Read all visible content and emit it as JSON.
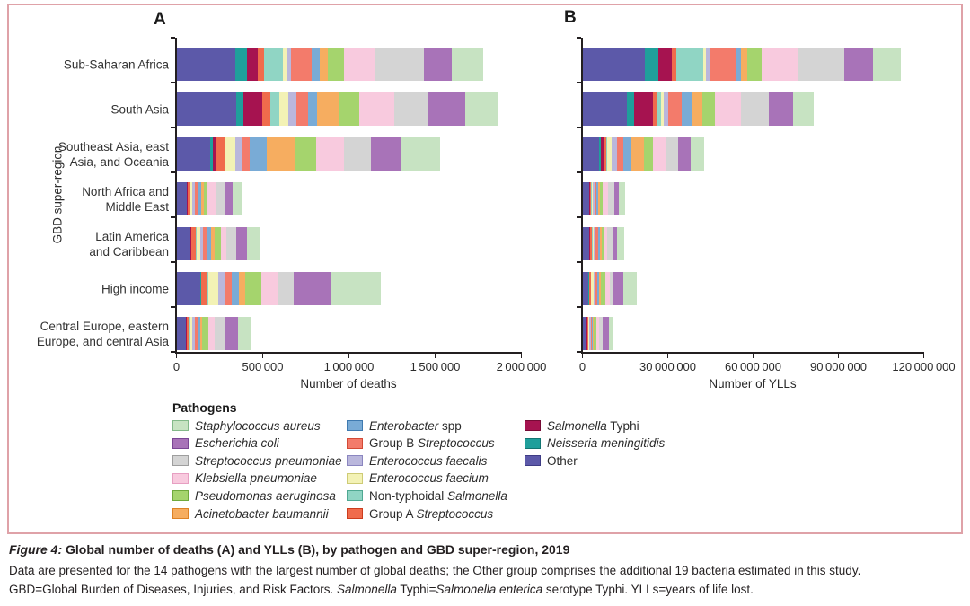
{
  "frame_color": "#dfa2a8",
  "axis_color": "#231f20",
  "legend": {
    "title": "Pathogens",
    "columns": [
      [
        {
          "parts": [
            {
              "text": "Staphylococcus aureus",
              "italic": true
            }
          ],
          "color": "#c7e3c2",
          "border": "#83b989"
        },
        {
          "parts": [
            {
              "text": "Escherichia coli",
              "italic": true
            }
          ],
          "color": "#a873b8",
          "border": "#7a4694"
        },
        {
          "parts": [
            {
              "text": "Streptococcus pneumoniae",
              "italic": true
            }
          ],
          "color": "#d4d4d4",
          "border": "#9e9e9e"
        },
        {
          "parts": [
            {
              "text": "Klebsiella pneumoniae",
              "italic": true
            }
          ],
          "color": "#f8cade",
          "border": "#e79fc2"
        },
        {
          "parts": [
            {
              "text": "Pseudomonas aeruginosa",
              "italic": true
            }
          ],
          "color": "#a5d46d",
          "border": "#6fa93c"
        },
        {
          "parts": [
            {
              "text": "Acinetobacter baumannii",
              "italic": true
            }
          ],
          "color": "#f6ad60",
          "border": "#dd8226"
        }
      ],
      [
        {
          "parts": [
            {
              "text": "Enterobacter",
              "italic": true
            },
            {
              "text": " spp",
              "italic": false
            }
          ],
          "color": "#79abd6",
          "border": "#3f7ab0"
        },
        {
          "parts": [
            {
              "text": "Group B ",
              "italic": false
            },
            {
              "text": "Streptococcus",
              "italic": true
            }
          ],
          "color": "#f37b6b",
          "border": "#d34a36"
        },
        {
          "parts": [
            {
              "text": "Enterococcus faecalis",
              "italic": true
            }
          ],
          "color": "#bab7dc",
          "border": "#8b86c0"
        },
        {
          "parts": [
            {
              "text": "Enterococcus faecium",
              "italic": true
            }
          ],
          "color": "#f3f2b5",
          "border": "#cecb76"
        },
        {
          "parts": [
            {
              "text": "Non-typhoidal ",
              "italic": false
            },
            {
              "text": "Salmonella",
              "italic": true
            }
          ],
          "color": "#90d5c4",
          "border": "#4fa892"
        },
        {
          "parts": [
            {
              "text": "Group A ",
              "italic": false
            },
            {
              "text": "Streptococcus",
              "italic": true
            }
          ],
          "color": "#f06b4c",
          "border": "#cc3d1e"
        }
      ],
      [
        {
          "parts": [
            {
              "text": "Salmonella",
              "italic": true
            },
            {
              "text": " Typhi",
              "italic": false
            }
          ],
          "color": "#a61350",
          "border": "#760b36"
        },
        {
          "parts": [
            {
              "text": "Neisseria meningitidis",
              "italic": true
            }
          ],
          "color": "#1f9f9b",
          "border": "#127571"
        },
        {
          "parts": [
            {
              "text": "Other",
              "italic": false
            }
          ],
          "color": "#5c59a9",
          "border": "#3f3c85"
        }
      ]
    ]
  },
  "chart_data": [
    {
      "type": "bar",
      "subtype": "horizontal-stacked",
      "panel": "A",
      "xlabel": "Number of deaths",
      "ylabel": "GBD super-region",
      "xlim": [
        0,
        2000000
      ],
      "grid": false,
      "xticks": [
        {
          "v": 0,
          "label": "0"
        },
        {
          "v": 500000,
          "label": "500 000"
        },
        {
          "v": 1000000,
          "label": "1 000 000"
        },
        {
          "v": 1500000,
          "label": "1 500 000"
        },
        {
          "v": 2000000,
          "label": "2 000 000"
        }
      ],
      "categories": [
        "Sub-Saharan Africa",
        "South Asia",
        "Southeast Asia, east\nAsia, and Oceania",
        "North Africa and\nMiddle East",
        "Latin America\nand Caribbean",
        "High income",
        "Central Europe, eastern\nEurope, and central Asia"
      ],
      "series": [
        {
          "name": "Other",
          "color": "#5c59a9",
          "values": [
            342000,
            347000,
            195000,
            58000,
            79000,
            140000,
            53000
          ]
        },
        {
          "name": "Neisseria meningitidis",
          "color": "#1f9f9b",
          "values": [
            65000,
            39000,
            16000,
            4000,
            4000,
            2000,
            3000
          ]
        },
        {
          "name": "Salmonella Typhi",
          "color": "#a61350",
          "values": [
            67000,
            110000,
            21000,
            5000,
            4000,
            1000,
            2000
          ]
        },
        {
          "name": "Group A Streptococcus",
          "color": "#f06b4c",
          "values": [
            35000,
            47000,
            47000,
            8000,
            23000,
            38000,
            14000
          ]
        },
        {
          "name": "Non-typhoidal Salmonella",
          "color": "#90d5c4",
          "values": [
            110000,
            53000,
            5000,
            5000,
            5000,
            5000,
            4000
          ]
        },
        {
          "name": "Enterococcus faecium",
          "color": "#f3f2b5",
          "values": [
            21000,
            53000,
            58000,
            12000,
            21000,
            58000,
            16000
          ]
        },
        {
          "name": "Enterococcus faecalis",
          "color": "#bab7dc",
          "values": [
            26000,
            44000,
            42000,
            14000,
            18000,
            38000,
            17000
          ]
        },
        {
          "name": "Group B Streptococcus",
          "color": "#f37b6b",
          "values": [
            119000,
            70000,
            42000,
            21000,
            26000,
            37000,
            14000
          ]
        },
        {
          "name": "Enterobacter spp",
          "color": "#79abd6",
          "values": [
            47000,
            53000,
            96000,
            14000,
            23000,
            42000,
            14000
          ]
        },
        {
          "name": "Acinetobacter baumannii",
          "color": "#f6ad60",
          "values": [
            44000,
            132000,
            167000,
            17000,
            21000,
            38000,
            12000
          ]
        },
        {
          "name": "Pseudomonas aeruginosa",
          "color": "#a5d46d",
          "values": [
            96000,
            114000,
            123000,
            23000,
            32000,
            95000,
            35000
          ]
        },
        {
          "name": "Klebsiella pneumoniae",
          "color": "#f8cade",
          "values": [
            184000,
            202000,
            158000,
            44000,
            35000,
            92000,
            40000
          ]
        },
        {
          "name": "Streptococcus pneumoniae",
          "color": "#d4d4d4",
          "values": [
            277000,
            193000,
            158000,
            56000,
            58000,
            92000,
            56000
          ]
        },
        {
          "name": "Escherichia coli",
          "color": "#a873b8",
          "values": [
            165000,
            219000,
            175000,
            44000,
            58000,
            220000,
            79000
          ]
        },
        {
          "name": "Staphylococcus aureus",
          "color": "#c7e3c2",
          "values": [
            181000,
            184000,
            228000,
            58000,
            79000,
            290000,
            70000
          ]
        }
      ]
    },
    {
      "type": "bar",
      "subtype": "horizontal-stacked",
      "panel": "B",
      "xlabel": "Number of YLLs",
      "xlim": [
        0,
        120000000
      ],
      "grid": false,
      "xticks": [
        {
          "v": 0,
          "label": "0"
        },
        {
          "v": 30000000,
          "label": "30 000 000"
        },
        {
          "v": 60000000,
          "label": "60 000 000"
        },
        {
          "v": 90000000,
          "label": "90 000 000"
        },
        {
          "v": 120000000,
          "label": "120 000 000"
        }
      ],
      "categories": [
        "Sub-Saharan Africa",
        "South Asia",
        "Southeast Asia, east\nAsia, and Oceania",
        "North Africa and\nMiddle East",
        "Latin America\nand Caribbean",
        "High income",
        "Central Europe, eastern\nEurope, and central Asia"
      ],
      "series": [
        {
          "name": "Other",
          "color": "#5c59a9",
          "values": [
            21900000,
            15700000,
            5900000,
            2300000,
            2400000,
            2200000,
            1400000
          ]
        },
        {
          "name": "Neisseria meningitidis",
          "color": "#1f9f9b",
          "values": [
            4800000,
            2400000,
            700000,
            200000,
            100000,
            100000,
            100000
          ]
        },
        {
          "name": "Salmonella Typhi",
          "color": "#a61350",
          "values": [
            4600000,
            6600000,
            1000000,
            200000,
            100000,
            100000,
            100000
          ]
        },
        {
          "name": "Group A Streptococcus",
          "color": "#f06b4c",
          "values": [
            1600000,
            1800000,
            800000,
            300000,
            700000,
            600000,
            350000
          ]
        },
        {
          "name": "Non-typhoidal Salmonella",
          "color": "#90d5c4",
          "values": [
            9700000,
            1300000,
            300000,
            200000,
            200000,
            100000,
            100000
          ]
        },
        {
          "name": "Enterococcus faecium",
          "color": "#f3f2b5",
          "values": [
            700000,
            800000,
            1600000,
            500000,
            600000,
            900000,
            400000
          ]
        },
        {
          "name": "Enterococcus faecalis",
          "color": "#bab7dc",
          "values": [
            1300000,
            1500000,
            1800000,
            500000,
            500000,
            600000,
            450000
          ]
        },
        {
          "name": "Group B Streptococcus",
          "color": "#f37b6b",
          "values": [
            9400000,
            4700000,
            2400000,
            800000,
            800000,
            600000,
            350000
          ]
        },
        {
          "name": "Enterobacter spp",
          "color": "#79abd6",
          "values": [
            1600000,
            3700000,
            2600000,
            600000,
            700000,
            700000,
            350000
          ]
        },
        {
          "name": "Acinetobacter baumannii",
          "color": "#f6ad60",
          "values": [
            2300000,
            3700000,
            4700000,
            700000,
            600000,
            600000,
            300000
          ]
        },
        {
          "name": "Pseudomonas aeruginosa",
          "color": "#a5d46d",
          "values": [
            5000000,
            4500000,
            3100000,
            900000,
            1000000,
            1500000,
            900000
          ]
        },
        {
          "name": "Klebsiella pneumoniae",
          "color": "#f8cade",
          "values": [
            13100000,
            9100000,
            4200000,
            1700000,
            1100000,
            1500000,
            1000000
          ]
        },
        {
          "name": "Streptococcus pneumoniae",
          "color": "#d4d4d4",
          "values": [
            16200000,
            9700000,
            4700000,
            2200000,
            1700000,
            1500000,
            1400000
          ]
        },
        {
          "name": "Escherichia coli",
          "color": "#a873b8",
          "values": [
            9900000,
            8600000,
            4200000,
            1700000,
            1700000,
            3500000,
            2000000
          ]
        },
        {
          "name": "Staphylococcus aureus",
          "color": "#c7e3c2",
          "values": [
            9900000,
            7300000,
            4700000,
            2200000,
            2400000,
            4600000,
            1800000
          ]
        }
      ]
    }
  ],
  "caption": {
    "title_prefix": "Figure 4:",
    "title_rest": " Global number of deaths (A) and YLLs (B), by pathogen and GBD super-region, 2019",
    "line2": "Data are presented for the 14 pathogens with the largest number of global deaths; the Other group comprises the additional 19 bacteria estimated in this study.",
    "line3_parts": [
      {
        "text": "GBD=Global Burden of Diseases, Injuries, and Risk Factors. ",
        "italic": false
      },
      {
        "text": "Salmonella",
        "italic": true
      },
      {
        "text": " Typhi=",
        "italic": false
      },
      {
        "text": "Salmonella enterica",
        "italic": true
      },
      {
        "text": " serotype Typhi. YLLs=years of life lost.",
        "italic": false
      }
    ]
  }
}
